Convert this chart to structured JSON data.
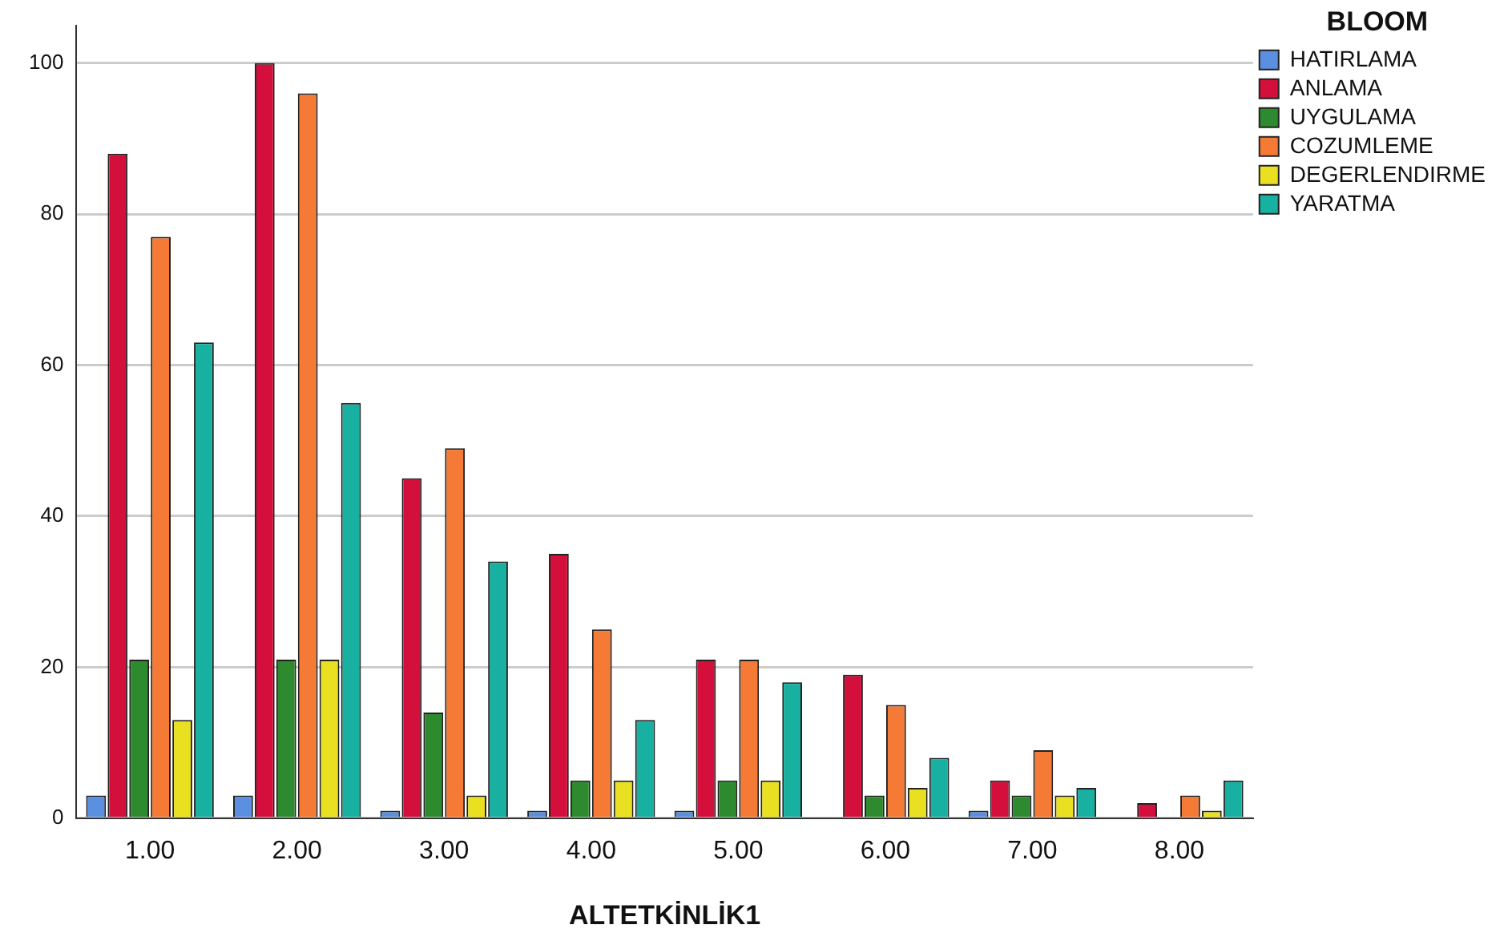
{
  "chart_data": {
    "type": "bar",
    "xlabel": "ALTETKİNLİK1",
    "legend_title": "BLOOM",
    "legend": "top right",
    "grid": "y",
    "categories": [
      "1.00",
      "2.00",
      "3.00",
      "4.00",
      "5.00",
      "6.00",
      "7.00",
      "8.00"
    ],
    "ylim": [
      0,
      105
    ],
    "yticks": [
      0,
      20,
      40,
      60,
      80,
      100
    ],
    "series": [
      {
        "name": "HATIRLAMA",
        "color": "#5b8fe0",
        "values": [
          3,
          3,
          1,
          1,
          1,
          null,
          1,
          null
        ]
      },
      {
        "name": "ANLAMA",
        "color": "#d40f3c",
        "values": [
          88,
          100,
          45,
          35,
          21,
          19,
          5,
          2
        ]
      },
      {
        "name": "UYGULAMA",
        "color": "#2e8a2e",
        "values": [
          21,
          21,
          14,
          5,
          5,
          3,
          3,
          null
        ]
      },
      {
        "name": "COZUMLEME",
        "color": "#f47a35",
        "values": [
          77,
          96,
          49,
          25,
          21,
          15,
          9,
          3
        ]
      },
      {
        "name": "DEGERLENDIRME",
        "color": "#e8e020",
        "values": [
          13,
          21,
          3,
          5,
          5,
          4,
          3,
          1
        ]
      },
      {
        "name": "YARATMA",
        "color": "#18b0a0",
        "values": [
          63,
          55,
          34,
          13,
          18,
          8,
          4,
          5
        ]
      }
    ]
  }
}
